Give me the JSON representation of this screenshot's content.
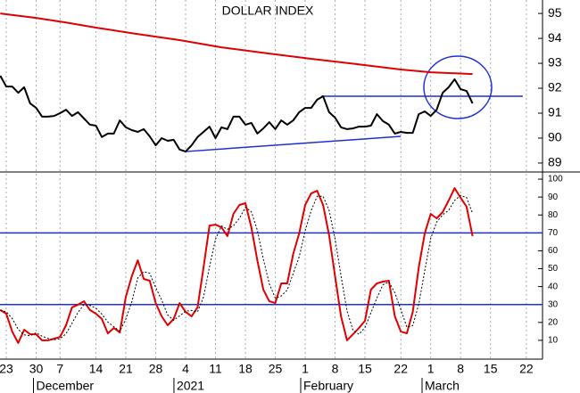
{
  "chart_data": [
    {
      "type": "line",
      "title": "DOLLAR INDEX",
      "xlim": [
        -1.045,
        89.7
      ],
      "ylim": [
        88.64,
        95.54
      ],
      "yticks": [
        89,
        90,
        91,
        92,
        93,
        94,
        95
      ],
      "series": [
        {
          "color": "#000000",
          "x": [
            -1,
            0,
            1,
            2,
            3,
            4,
            5,
            6,
            7,
            8,
            9,
            10,
            11,
            12,
            13,
            14,
            15,
            16,
            17,
            18,
            19,
            20,
            21,
            22,
            23,
            24,
            25,
            26,
            27,
            28,
            29,
            30,
            31,
            32,
            33,
            34,
            35,
            36,
            37,
            38,
            39,
            40,
            41,
            42,
            43,
            44,
            45,
            46,
            47,
            48,
            49,
            50,
            51,
            52,
            53,
            54,
            55,
            56,
            57,
            58,
            59,
            60,
            61,
            62,
            63,
            64,
            65,
            66,
            67,
            68,
            69,
            70,
            71,
            72,
            73,
            74,
            75,
            76,
            77,
            78
          ],
          "values": [
            92.5,
            92.07,
            92.07,
            91.82,
            92.04,
            91.39,
            91.21,
            90.86,
            90.86,
            90.89,
            91.0,
            91.14,
            90.89,
            91.04,
            90.79,
            90.54,
            90.5,
            90.04,
            90.18,
            90.18,
            90.71,
            90.43,
            90.32,
            90.25,
            90.36,
            90.07,
            89.71,
            90.0,
            89.89,
            89.93,
            89.54,
            89.46,
            89.71,
            90.04,
            90.25,
            90.46,
            90.0,
            90.43,
            90.36,
            90.86,
            90.86,
            90.54,
            90.61,
            90.18,
            90.39,
            90.64,
            90.36,
            90.71,
            90.54,
            90.71,
            91.04,
            91.21,
            91.21,
            91.54,
            91.68,
            91.04,
            90.82,
            90.43,
            90.36,
            90.39,
            90.46,
            90.46,
            90.5,
            90.96,
            90.68,
            90.54,
            90.18,
            90.25,
            90.21,
            90.21,
            90.96,
            91.07,
            90.89,
            91.14,
            91.82,
            92.04,
            92.36,
            91.96,
            91.89,
            91.39
          ]
        },
        {
          "color": "#e00000",
          "x": [
            -1,
            5,
            10,
            15,
            21,
            29,
            36,
            44,
            51,
            59,
            66,
            71,
            78
          ],
          "values": [
            95.0,
            94.82,
            94.64,
            94.43,
            94.21,
            93.93,
            93.64,
            93.39,
            93.18,
            92.96,
            92.75,
            92.64,
            92.57
          ]
        }
      ],
      "trend_lines": [
        {
          "color": "#1f2fd0",
          "x": [
            52.7,
            86.4
          ],
          "values": [
            91.68,
            91.68
          ]
        },
        {
          "color": "#1f2fd0",
          "x": [
            30,
            66
          ],
          "values": [
            89.46,
            90.07
          ]
        }
      ]
    },
    {
      "type": "line",
      "xlim": [
        -1.045,
        89.7
      ],
      "ylim": [
        -0.5,
        104
      ],
      "yticks": [
        10,
        20,
        30,
        40,
        50,
        60,
        70,
        80,
        90,
        100
      ],
      "hlines": [
        70,
        30
      ],
      "hline_color": "#1f2fd0",
      "xticks": [
        {
          "value": 0,
          "label": "23"
        },
        {
          "value": 5,
          "label": "30"
        },
        {
          "value": 9,
          "label": "7"
        },
        {
          "value": 15,
          "label": "14"
        },
        {
          "value": 20,
          "label": "21"
        },
        {
          "value": 25,
          "label": "28"
        },
        {
          "value": 30,
          "label": "4"
        },
        {
          "value": 35,
          "label": "11"
        },
        {
          "value": 40,
          "label": "18"
        },
        {
          "value": 45,
          "label": "25"
        },
        {
          "value": 50,
          "label": "1"
        },
        {
          "value": 55,
          "label": "8"
        },
        {
          "value": 60,
          "label": "15"
        },
        {
          "value": 66,
          "label": "22"
        },
        {
          "value": 71,
          "label": "1"
        },
        {
          "value": 76,
          "label": "8"
        },
        {
          "value": 81,
          "label": "15"
        },
        {
          "value": 87,
          "label": "22"
        }
      ],
      "month_labels": [
        {
          "value": 5,
          "label": "December"
        },
        {
          "value": 28.5,
          "label": "2021"
        },
        {
          "value": 49.7,
          "label": "February"
        },
        {
          "value": 70,
          "label": "March"
        }
      ],
      "grid": true,
      "series": [
        {
          "color": "#e00000",
          "dotted": false,
          "x": [
            -1,
            0,
            1,
            2,
            3,
            4,
            5,
            6,
            7,
            8,
            9,
            10,
            11,
            12,
            13,
            14,
            15,
            16,
            17,
            18,
            19,
            20,
            21,
            22,
            23,
            24,
            25,
            26,
            27,
            28,
            29,
            30,
            31,
            32,
            33,
            34,
            35,
            36,
            37,
            38,
            39,
            40,
            41,
            42,
            43,
            44,
            45,
            46,
            47,
            48,
            49,
            50,
            51,
            52,
            53,
            54,
            55,
            56,
            57,
            58,
            59,
            60,
            61,
            62,
            63,
            64,
            65,
            66,
            67,
            68,
            69,
            70,
            71,
            72,
            73,
            74,
            75,
            76,
            77,
            78
          ],
          "values": [
            26.9,
            24.9,
            14.9,
            8.5,
            15.9,
            13.4,
            13.4,
            10.0,
            10.0,
            10.9,
            11.9,
            18.4,
            28.4,
            29.9,
            31.8,
            26.9,
            24.9,
            21.9,
            13.9,
            16.9,
            14.4,
            34.3,
            45.8,
            54.7,
            44.3,
            43.3,
            30.8,
            23.4,
            18.4,
            21.9,
            30.8,
            25.9,
            23.4,
            28.4,
            50.7,
            74.1,
            74.6,
            73.1,
            68.2,
            80.6,
            85.6,
            86.6,
            73.1,
            54.7,
            38.3,
            31.8,
            30.8,
            41.8,
            41.8,
            58.2,
            69.7,
            85.6,
            92.0,
            93.5,
            85.6,
            68.7,
            45.8,
            23.4,
            10.0,
            13.4,
            16.9,
            20.9,
            38.3,
            41.8,
            42.8,
            43.3,
            23.4,
            14.9,
            13.9,
            25.9,
            50.7,
            69.7,
            80.6,
            78.1,
            81.6,
            88.1,
            95.0,
            89.6,
            84.6,
            68.2
          ]
        },
        {
          "color": "#000000",
          "dotted": true,
          "x": [
            -1,
            0,
            1,
            2,
            3,
            4,
            5,
            6,
            7,
            8,
            9,
            10,
            11,
            12,
            13,
            14,
            15,
            16,
            17,
            18,
            19,
            20,
            21,
            22,
            23,
            24,
            25,
            26,
            27,
            28,
            29,
            30,
            31,
            32,
            33,
            34,
            35,
            36,
            37,
            38,
            39,
            40,
            41,
            42,
            43,
            44,
            45,
            46,
            47,
            48,
            49,
            50,
            51,
            52,
            53,
            54,
            55,
            56,
            57,
            58,
            59,
            60,
            61,
            62,
            63,
            64,
            65,
            66,
            67,
            68,
            69,
            70,
            71,
            72,
            73,
            74,
            75,
            76,
            77,
            78
          ],
          "values": [
            26.9,
            25.9,
            22.2,
            16.1,
            13.1,
            12.6,
            14.2,
            12.3,
            11.1,
            10.3,
            10.9,
            13.7,
            19.6,
            25.6,
            30.0,
            29.5,
            27.9,
            24.6,
            20.2,
            17.6,
            15.1,
            21.9,
            31.5,
            44.9,
            48.3,
            47.4,
            39.5,
            32.5,
            24.2,
            21.2,
            23.7,
            26.2,
            26.7,
            25.9,
            34.2,
            51.1,
            66.5,
            73.9,
            72.0,
            74.0,
            78.1,
            84.3,
            81.8,
            71.5,
            55.4,
            41.6,
            33.6,
            34.8,
            38.1,
            47.3,
            56.6,
            71.2,
            82.4,
            90.4,
            90.4,
            82.6,
            66.7,
            46.0,
            26.4,
            15.6,
            13.4,
            17.1,
            25.4,
            33.7,
            41.0,
            42.6,
            36.5,
            27.2,
            17.4,
            18.2,
            30.2,
            48.8,
            67.0,
            76.1,
            80.1,
            82.6,
            88.2,
            90.9,
            89.7,
            80.8
          ]
        }
      ]
    }
  ]
}
